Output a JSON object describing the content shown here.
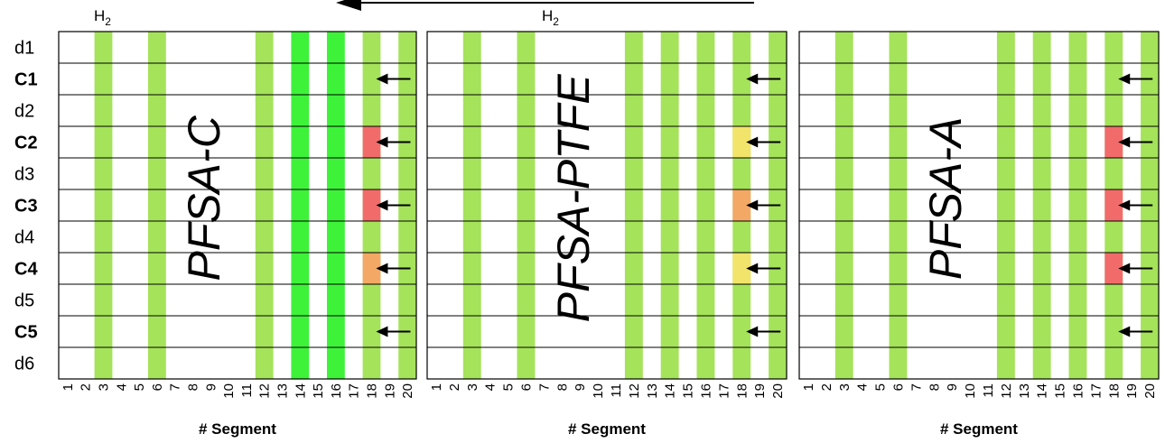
{
  "top_labels": {
    "left": {
      "main": "H",
      "sub": "2"
    },
    "center": {
      "main": "H",
      "sub": "2"
    }
  },
  "row_labels": [
    {
      "text": "d1",
      "bold": false
    },
    {
      "text": "C1",
      "bold": true
    },
    {
      "text": "d2",
      "bold": false
    },
    {
      "text": "C2",
      "bold": true
    },
    {
      "text": "d3",
      "bold": false
    },
    {
      "text": "C3",
      "bold": true
    },
    {
      "text": "d4",
      "bold": false
    },
    {
      "text": "C4",
      "bold": true
    },
    {
      "text": "d5",
      "bold": false
    },
    {
      "text": "C5",
      "bold": true
    },
    {
      "text": "d6",
      "bold": false
    }
  ],
  "segments": [
    "1",
    "2",
    "3",
    "4",
    "5",
    "6",
    "7",
    "8",
    "9",
    "10",
    "11",
    "12",
    "13",
    "14",
    "15",
    "16",
    "17",
    "18",
    "19",
    "20"
  ],
  "colors": {
    "light_green": "#a5e35a",
    "bright_green": "#3ef23a",
    "red": "#f26b6b",
    "orange": "#f3a865",
    "yellow": "#f2e36a",
    "border": "#000000"
  },
  "panels": [
    {
      "title": "PFSA-C",
      "xlabel": "# Segment",
      "green_columns": [
        3,
        6,
        12,
        18,
        20
      ],
      "bright_columns": [
        14,
        16
      ],
      "cells": [
        {
          "segment": 18,
          "row": "C2",
          "color": "red"
        },
        {
          "segment": 18,
          "row": "C3",
          "color": "red"
        },
        {
          "segment": 18,
          "row": "C4",
          "color": "orange"
        }
      ],
      "arrow_rows": [
        "C1",
        "C2",
        "C3",
        "C4",
        "C5"
      ]
    },
    {
      "title": "PFSA-PTFE",
      "xlabel": "# Segment",
      "green_columns": [
        3,
        6,
        12,
        14,
        16,
        18,
        20
      ],
      "bright_columns": [],
      "cells": [
        {
          "segment": 18,
          "row": "C2",
          "color": "yellow"
        },
        {
          "segment": 18,
          "row": "C3",
          "color": "orange"
        },
        {
          "segment": 18,
          "row": "C4",
          "color": "yellow"
        }
      ],
      "arrow_rows": [
        "C1",
        "C2",
        "C3",
        "C4",
        "C5"
      ]
    },
    {
      "title": "PFSA-A",
      "xlabel": "# Segment",
      "green_columns": [
        3,
        6,
        12,
        14,
        16,
        18,
        20
      ],
      "bright_columns": [],
      "cells": [
        {
          "segment": 18,
          "row": "C2",
          "color": "red"
        },
        {
          "segment": 18,
          "row": "C3",
          "color": "red"
        },
        {
          "segment": 18,
          "row": "C4",
          "color": "red"
        }
      ],
      "arrow_rows": [
        "C1",
        "C2",
        "C3",
        "C4",
        "C5"
      ]
    }
  ]
}
